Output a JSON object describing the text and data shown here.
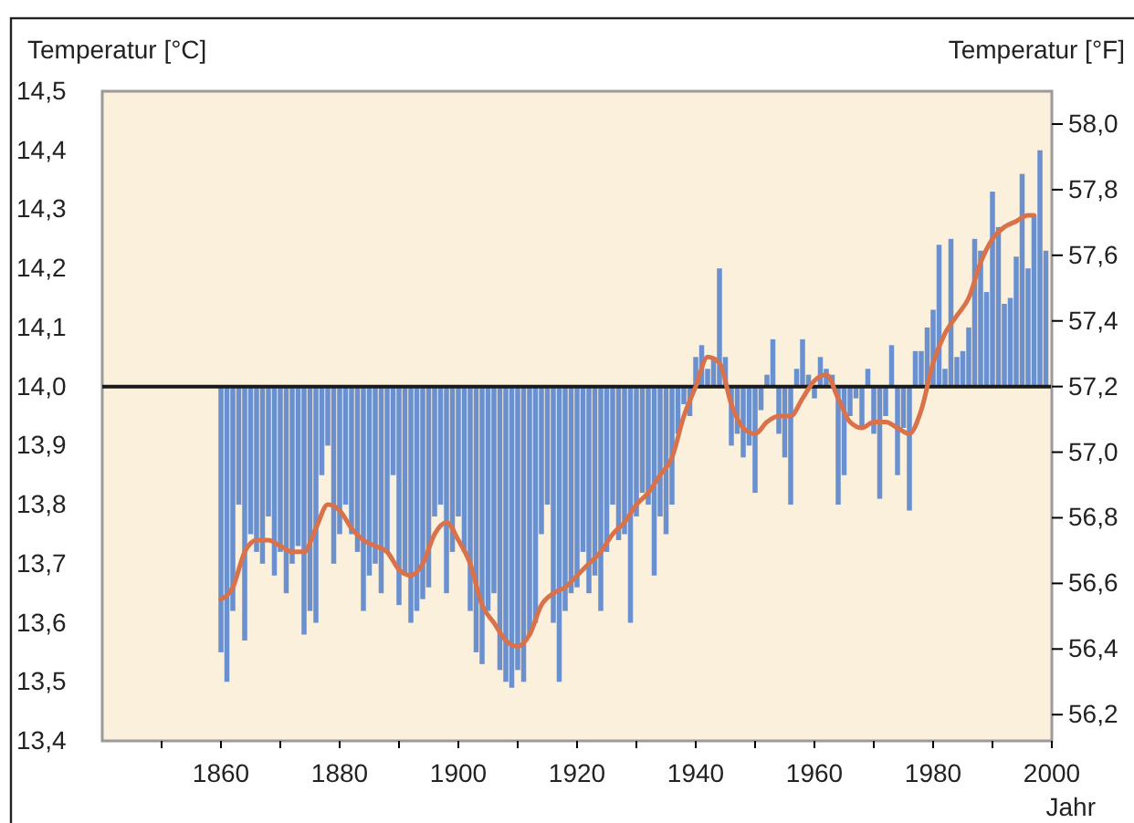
{
  "chart_data": {
    "type": "bar",
    "ylabel": "Temperatur [°C]",
    "y2label": "Temperatur [°F]",
    "xlabel": "Jahr",
    "xlim": [
      1840,
      2000
    ],
    "xticks": [
      {
        "value": 1850,
        "label": null
      },
      1860,
      {
        "value": 1870,
        "label": null
      },
      1880,
      {
        "value": 1890,
        "label": null
      },
      1900,
      {
        "value": 1910,
        "label": null
      },
      1920,
      {
        "value": 1930,
        "label": null
      },
      1940,
      {
        "value": 1950,
        "label": null
      },
      1960,
      {
        "value": 1970,
        "label": null
      },
      1980,
      {
        "value": 1990,
        "label": null
      },
      2000
    ],
    "ylim": [
      13.4,
      14.5
    ],
    "yticks": [
      {
        "value": 13.4,
        "label": "13,4"
      },
      {
        "value": 13.5,
        "label": "13,5"
      },
      {
        "value": 13.6,
        "label": "13,6"
      },
      {
        "value": 13.7,
        "label": "13,7"
      },
      {
        "value": 13.8,
        "label": "13,8"
      },
      {
        "value": 13.9,
        "label": "13,9"
      },
      {
        "value": 14.0,
        "label": "14,0"
      },
      {
        "value": 14.1,
        "label": "14,1"
      },
      {
        "value": 14.2,
        "label": "14,2"
      },
      {
        "value": 14.3,
        "label": "14,3"
      },
      {
        "value": 14.4,
        "label": "14,4"
      },
      {
        "value": 14.5,
        "label": "14,5"
      }
    ],
    "y2lim": [
      56.12,
      58.1
    ],
    "y2ticks": [
      {
        "value": 56.2,
        "label": "56,2"
      },
      {
        "value": 56.4,
        "label": "56,4"
      },
      {
        "value": 56.6,
        "label": "56,6"
      },
      {
        "value": 56.8,
        "label": "56,8"
      },
      {
        "value": 57.0,
        "label": "57,0"
      },
      {
        "value": 57.2,
        "label": "57,2"
      },
      {
        "value": 57.4,
        "label": "57,4"
      },
      {
        "value": 57.6,
        "label": "57,6"
      },
      {
        "value": 57.8,
        "label": "57,8"
      },
      {
        "value": 58.0,
        "label": "58,0"
      }
    ],
    "grid": false,
    "ref_lines": [
      {
        "axis": "y",
        "value": 14.0,
        "color": "#1a1a1a"
      }
    ],
    "series": [
      {
        "color": "#6a90cf",
        "x": [
          1860,
          1861,
          1862,
          1863,
          1864,
          1865,
          1866,
          1867,
          1868,
          1869,
          1870,
          1871,
          1872,
          1873,
          1874,
          1875,
          1876,
          1877,
          1878,
          1879,
          1880,
          1881,
          1882,
          1883,
          1884,
          1885,
          1886,
          1887,
          1888,
          1889,
          1890,
          1891,
          1892,
          1893,
          1894,
          1895,
          1896,
          1897,
          1898,
          1899,
          1900,
          1901,
          1902,
          1903,
          1904,
          1905,
          1906,
          1907,
          1908,
          1909,
          1910,
          1911,
          1912,
          1913,
          1914,
          1915,
          1916,
          1917,
          1918,
          1919,
          1920,
          1921,
          1922,
          1923,
          1924,
          1925,
          1926,
          1927,
          1928,
          1929,
          1930,
          1931,
          1932,
          1933,
          1934,
          1935,
          1936,
          1937,
          1938,
          1939,
          1940,
          1941,
          1942,
          1943,
          1944,
          1945,
          1946,
          1947,
          1948,
          1949,
          1950,
          1951,
          1952,
          1953,
          1954,
          1955,
          1956,
          1957,
          1958,
          1959,
          1960,
          1961,
          1962,
          1963,
          1964,
          1965,
          1966,
          1967,
          1968,
          1969,
          1970,
          1971,
          1972,
          1973,
          1974,
          1975,
          1976,
          1977,
          1978,
          1979,
          1980,
          1981,
          1982,
          1983,
          1984,
          1985,
          1986,
          1987,
          1988,
          1989,
          1990,
          1991,
          1992,
          1993,
          1994,
          1995,
          1996,
          1997,
          1998,
          1999
        ],
        "base": [
          14,
          14,
          14,
          14,
          14,
          14,
          14,
          14,
          14,
          14,
          14,
          14,
          14,
          14,
          14,
          14,
          14,
          14,
          14,
          14,
          14,
          14,
          14,
          14,
          14,
          14,
          14,
          14,
          14,
          14,
          14,
          14,
          14,
          14,
          14,
          14,
          14,
          14,
          14,
          14,
          14,
          14,
          14,
          14,
          14,
          14,
          14,
          14,
          14,
          14,
          14,
          14,
          14,
          14,
          14,
          14,
          14,
          14,
          14,
          14,
          14,
          14,
          14,
          14,
          14,
          14,
          14,
          14,
          14,
          14,
          14,
          14,
          14,
          14,
          14,
          14,
          14,
          14,
          14,
          14,
          14,
          14,
          14,
          14,
          14,
          14,
          14,
          14,
          14,
          14,
          14,
          14,
          14,
          14,
          14,
          14,
          14,
          14,
          14,
          14,
          14,
          14,
          14,
          14,
          14,
          14,
          14,
          14,
          14,
          14,
          14,
          14,
          14,
          14,
          14,
          14,
          14,
          14,
          14,
          14,
          14,
          14,
          14,
          14,
          14,
          14,
          14,
          14,
          14,
          14,
          14,
          14,
          14,
          14,
          14,
          14,
          14,
          14,
          14,
          14
        ],
        "values": [
          -0.45,
          -0.5,
          -0.38,
          -0.2,
          -0.43,
          -0.25,
          -0.28,
          -0.3,
          -0.22,
          -0.32,
          -0.28,
          -0.35,
          -0.3,
          -0.27,
          -0.42,
          -0.38,
          -0.4,
          -0.15,
          -0.1,
          -0.3,
          -0.25,
          -0.2,
          -0.25,
          -0.28,
          -0.38,
          -0.32,
          -0.3,
          -0.35,
          -0.28,
          -0.15,
          -0.37,
          -0.32,
          -0.4,
          -0.38,
          -0.36,
          -0.34,
          -0.22,
          -0.2,
          -0.35,
          -0.28,
          -0.22,
          -0.28,
          -0.38,
          -0.45,
          -0.47,
          -0.38,
          -0.35,
          -0.48,
          -0.5,
          -0.51,
          -0.48,
          -0.5,
          -0.42,
          -0.4,
          -0.25,
          -0.2,
          -0.4,
          -0.5,
          -0.38,
          -0.35,
          -0.34,
          -0.28,
          -0.35,
          -0.32,
          -0.38,
          -0.28,
          -0.2,
          -0.26,
          -0.25,
          -0.4,
          -0.22,
          -0.18,
          -0.2,
          -0.32,
          -0.22,
          -0.25,
          -0.2,
          -0.08,
          -0.03,
          -0.05,
          0.05,
          0.07,
          0.03,
          0.05,
          0.2,
          0.05,
          -0.1,
          -0.08,
          -0.12,
          -0.1,
          -0.18,
          -0.04,
          0.02,
          0.08,
          -0.08,
          -0.12,
          -0.2,
          0.03,
          0.08,
          0.02,
          -0.02,
          0.05,
          0.03,
          0.02,
          -0.2,
          -0.15,
          -0.05,
          -0.02,
          -0.07,
          0.03,
          -0.08,
          -0.19,
          -0.05,
          0.07,
          -0.15,
          -0.07,
          -0.21,
          0.06,
          0.06,
          0.1,
          0.13,
          0.24,
          0.03,
          0.25,
          0.05,
          0.06,
          0.1,
          0.25,
          0.23,
          0.16,
          0.33,
          0.27,
          0.14,
          0.15,
          0.22,
          0.36,
          0.2,
          0.29,
          0.4,
          0.23
        ]
      },
      {
        "type": "line",
        "color": "#d9714a",
        "x": [
          1860,
          1862,
          1864,
          1866,
          1868,
          1870,
          1872,
          1874,
          1876,
          1878,
          1880,
          1882,
          1884,
          1886,
          1888,
          1890,
          1892,
          1894,
          1896,
          1898,
          1900,
          1902,
          1904,
          1906,
          1908,
          1910,
          1912,
          1914,
          1916,
          1918,
          1920,
          1922,
          1924,
          1926,
          1928,
          1930,
          1932,
          1934,
          1936,
          1938,
          1940,
          1942,
          1944,
          1946,
          1948,
          1950,
          1952,
          1954,
          1956,
          1958,
          1960,
          1962,
          1964,
          1966,
          1968,
          1970,
          1972,
          1974,
          1976,
          1978,
          1980,
          1982,
          1984,
          1986,
          1988,
          1990,
          1992,
          1994,
          1996,
          1997
        ],
        "values": [
          13.64,
          13.66,
          13.72,
          13.74,
          13.74,
          13.73,
          13.72,
          13.72,
          13.76,
          13.8,
          13.79,
          13.76,
          13.74,
          13.73,
          13.72,
          13.69,
          13.68,
          13.7,
          13.75,
          13.77,
          13.74,
          13.7,
          13.63,
          13.6,
          13.57,
          13.56,
          13.58,
          13.63,
          13.65,
          13.66,
          13.68,
          13.7,
          13.72,
          13.75,
          13.77,
          13.8,
          13.82,
          13.85,
          13.88,
          13.95,
          14.0,
          14.05,
          14.04,
          13.97,
          13.93,
          13.92,
          13.94,
          13.95,
          13.95,
          13.98,
          14.01,
          14.02,
          13.98,
          13.94,
          13.93,
          13.94,
          13.94,
          13.93,
          13.92,
          13.96,
          14.04,
          14.09,
          14.12,
          14.15,
          14.21,
          14.25,
          14.27,
          14.28,
          14.29,
          14.29
        ]
      }
    ]
  }
}
